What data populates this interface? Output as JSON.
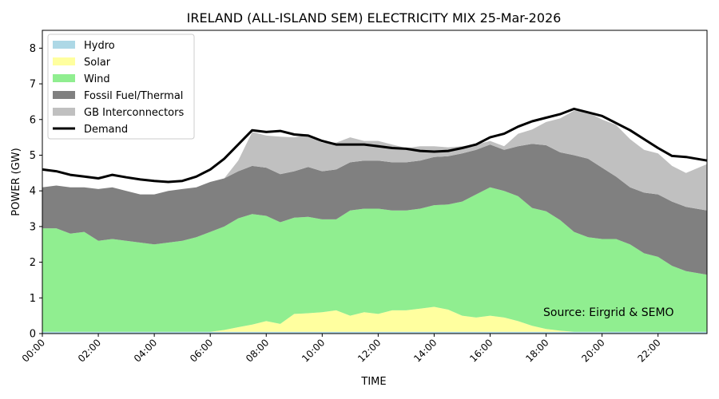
{
  "chart_data": {
    "type": "area",
    "title": "IRELAND (ALL-ISLAND SEM) ELECTRICITY MIX 25-Mar-2026",
    "xlabel": "TIME",
    "ylabel": "POWER (GW)",
    "ylim": [
      0,
      8.5
    ],
    "yticks": [
      0,
      1,
      2,
      3,
      4,
      5,
      6,
      7,
      8
    ],
    "xticks": [
      "00:00",
      "02:00",
      "04:00",
      "06:00",
      "08:00",
      "10:00",
      "12:00",
      "14:00",
      "16:00",
      "18:00",
      "20:00",
      "22:00"
    ],
    "x": [
      "00:00",
      "00:30",
      "01:00",
      "01:30",
      "02:00",
      "02:30",
      "03:00",
      "03:30",
      "04:00",
      "04:30",
      "05:00",
      "05:30",
      "06:00",
      "06:30",
      "07:00",
      "07:30",
      "08:00",
      "08:30",
      "09:00",
      "09:30",
      "10:00",
      "10:30",
      "11:00",
      "11:30",
      "12:00",
      "12:30",
      "13:00",
      "13:30",
      "14:00",
      "14:30",
      "15:00",
      "15:30",
      "16:00",
      "16:30",
      "17:00",
      "17:30",
      "18:00",
      "18:30",
      "19:00",
      "19:30",
      "20:00",
      "20:30",
      "21:00",
      "21:30",
      "22:00",
      "22:30",
      "23:00",
      "23:45"
    ],
    "stack_order": [
      "Hydro",
      "Solar",
      "Wind",
      "Fossil Fuel/Thermal",
      "GB Interconnectors"
    ],
    "series": [
      {
        "name": "Hydro",
        "color": "#add8e6",
        "values": [
          0.05,
          0.05,
          0.05,
          0.05,
          0.05,
          0.05,
          0.05,
          0.05,
          0.05,
          0.05,
          0.05,
          0.05,
          0.05,
          0.05,
          0.05,
          0.05,
          0.05,
          0.05,
          0.05,
          0.05,
          0.05,
          0.05,
          0.05,
          0.05,
          0.05,
          0.05,
          0.05,
          0.05,
          0.05,
          0.05,
          0.05,
          0.05,
          0.05,
          0.05,
          0.05,
          0.05,
          0.05,
          0.05,
          0.05,
          0.05,
          0.05,
          0.05,
          0.05,
          0.05,
          0.05,
          0.05,
          0.05,
          0.05
        ]
      },
      {
        "name": "Solar",
        "color": "#ffff9f",
        "values": [
          0,
          0,
          0,
          0,
          0,
          0,
          0,
          0,
          0,
          0,
          0,
          0,
          0,
          0.05,
          0.13,
          0.2,
          0.3,
          0.22,
          0.5,
          0.52,
          0.55,
          0.6,
          0.45,
          0.55,
          0.5,
          0.6,
          0.6,
          0.65,
          0.7,
          0.62,
          0.45,
          0.4,
          0.45,
          0.4,
          0.3,
          0.17,
          0.08,
          0.03,
          0,
          0,
          0,
          0,
          0,
          0,
          0,
          0,
          0,
          0
        ]
      },
      {
        "name": "Wind",
        "color": "#90ee90",
        "values": [
          2.9,
          2.9,
          2.75,
          2.8,
          2.55,
          2.6,
          2.55,
          2.5,
          2.45,
          2.5,
          2.55,
          2.65,
          2.8,
          2.9,
          3.05,
          3.1,
          2.95,
          2.85,
          2.7,
          2.7,
          2.6,
          2.55,
          2.95,
          2.9,
          2.95,
          2.8,
          2.8,
          2.8,
          2.85,
          2.95,
          3.2,
          3.45,
          3.6,
          3.55,
          3.5,
          3.3,
          3.3,
          3.1,
          2.8,
          2.65,
          2.6,
          2.6,
          2.45,
          2.2,
          2.1,
          1.85,
          1.7,
          1.6
        ]
      },
      {
        "name": "Fossil Fuel/Thermal",
        "color": "#808080",
        "values": [
          1.15,
          1.2,
          1.3,
          1.25,
          1.45,
          1.45,
          1.4,
          1.35,
          1.4,
          1.45,
          1.45,
          1.4,
          1.4,
          1.35,
          1.32,
          1.35,
          1.35,
          1.35,
          1.3,
          1.4,
          1.35,
          1.4,
          1.35,
          1.35,
          1.35,
          1.35,
          1.35,
          1.35,
          1.35,
          1.35,
          1.35,
          1.25,
          1.2,
          1.15,
          1.4,
          1.8,
          1.85,
          1.9,
          2.15,
          2.2,
          2.0,
          1.75,
          1.6,
          1.7,
          1.75,
          1.8,
          1.8,
          1.8
        ]
      },
      {
        "name": "GB Interconnectors",
        "color": "#c0c0c0",
        "values": [
          0,
          0,
          0,
          0,
          0,
          0,
          0,
          0,
          0,
          0,
          0,
          0,
          0,
          0,
          0.3,
          0.95,
          0.9,
          1.05,
          0.95,
          0.9,
          0.8,
          0.75,
          0.7,
          0.55,
          0.55,
          0.5,
          0.4,
          0.4,
          0.3,
          0.25,
          0.2,
          0.15,
          0.1,
          0.1,
          0.35,
          0.4,
          0.65,
          0.95,
          1.25,
          1.3,
          1.35,
          1.45,
          1.35,
          1.2,
          1.15,
          1.0,
          0.95,
          1.3
        ]
      }
    ],
    "demand": {
      "name": "Demand",
      "color": "#000000",
      "values": [
        4.6,
        4.55,
        4.45,
        4.4,
        4.35,
        4.45,
        4.38,
        4.32,
        4.28,
        4.25,
        4.28,
        4.4,
        4.6,
        4.9,
        5.3,
        5.7,
        5.65,
        5.68,
        5.58,
        5.55,
        5.4,
        5.3,
        5.3,
        5.3,
        5.25,
        5.2,
        5.18,
        5.12,
        5.1,
        5.12,
        5.2,
        5.3,
        5.5,
        5.6,
        5.8,
        5.95,
        6.05,
        6.15,
        6.3,
        6.2,
        6.1,
        5.9,
        5.7,
        5.45,
        5.2,
        4.98,
        4.95,
        4.85
      ]
    },
    "legend_position": "upper-left",
    "grid": false,
    "annotation": "Source: Eirgrid & SEMO"
  }
}
